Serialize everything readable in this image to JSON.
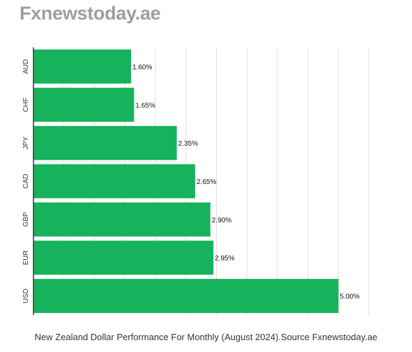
{
  "brand": {
    "name": "Fxnewstoday.ae"
  },
  "caption": "New Zealand Dollar Performance For Monthly (August 2024).Source Fxnewstoday.ae",
  "colors": {
    "bar": "#16b25c",
    "grid": "#e0e0e0",
    "axis": "#333333",
    "brand": "#9e9e9e"
  },
  "chart_data": {
    "type": "bar",
    "orientation": "horizontal",
    "categories": [
      "AUD",
      "CHF",
      "JPY",
      "CAD",
      "GBP",
      "EUR",
      "USD"
    ],
    "values": [
      1.6,
      1.65,
      2.35,
      2.65,
      2.9,
      2.95,
      5.0
    ],
    "value_labels": [
      "1.60%",
      "1.65%",
      "2.35%",
      "2.65%",
      "2.90%",
      "2.95%",
      "5.00%"
    ],
    "xlim": [
      0,
      5.5
    ],
    "grid": true,
    "title": "",
    "xlabel": "",
    "ylabel": ""
  }
}
